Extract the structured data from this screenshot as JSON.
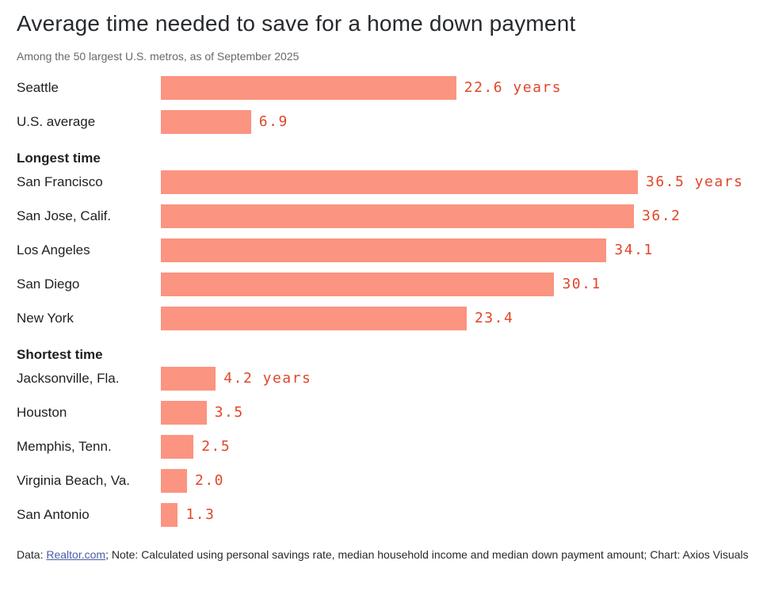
{
  "page": {
    "title": "Average time needed to save for a home down payment",
    "subtitle": "Among the 50 largest U.S. metros, as of September 2025",
    "footer": {
      "data_prefix": "Data: ",
      "source_link": "Realtor.com",
      "note": "; Note: Calculated using personal savings rate, median household income and median down payment amount; Chart: Axios Visuals"
    }
  },
  "colors": {
    "bar": "#fb9480",
    "value_text": "#e0472a",
    "link": "#485fa5"
  },
  "chart_data": {
    "type": "bar",
    "orientation": "horizontal",
    "title": "Average time needed to save for a home down payment",
    "subtitle": "Among the 50 largest U.S. metros, as of September 2025",
    "unit": "years",
    "xlim": [
      0,
      36.5
    ],
    "grid": false,
    "legend": false,
    "groups": [
      {
        "header": null,
        "rows": [
          {
            "label": "Seattle",
            "value": 22.6,
            "value_label": "22.6 years"
          },
          {
            "label": "U.S. average",
            "value": 6.9,
            "value_label": "6.9"
          }
        ]
      },
      {
        "header": "Longest time",
        "rows": [
          {
            "label": "San Francisco",
            "value": 36.5,
            "value_label": "36.5 years"
          },
          {
            "label": "San Jose, Calif.",
            "value": 36.2,
            "value_label": "36.2"
          },
          {
            "label": "Los Angeles",
            "value": 34.1,
            "value_label": "34.1"
          },
          {
            "label": "San Diego",
            "value": 30.1,
            "value_label": "30.1"
          },
          {
            "label": "New York",
            "value": 23.4,
            "value_label": "23.4"
          }
        ]
      },
      {
        "header": "Shortest time",
        "rows": [
          {
            "label": "Jacksonville, Fla.",
            "value": 4.2,
            "value_label": "4.2 years"
          },
          {
            "label": "Houston",
            "value": 3.5,
            "value_label": "3.5"
          },
          {
            "label": "Memphis, Tenn.",
            "value": 2.5,
            "value_label": "2.5"
          },
          {
            "label": "Virginia Beach, Va.",
            "value": 2.0,
            "value_label": "2.0"
          },
          {
            "label": "San Antonio",
            "value": 1.3,
            "value_label": "1.3"
          }
        ]
      }
    ]
  }
}
